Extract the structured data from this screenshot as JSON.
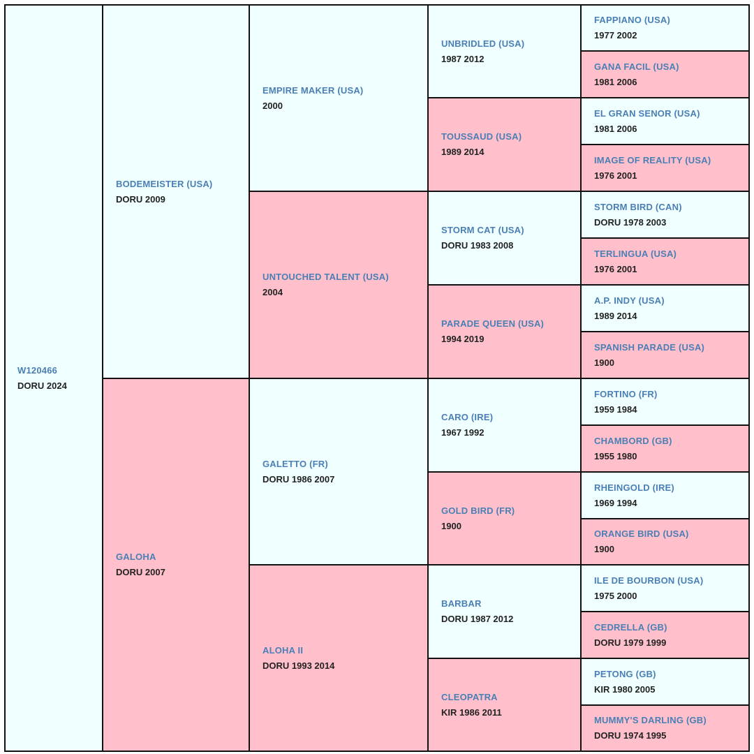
{
  "pedigree": {
    "subject": {
      "name": "W120466",
      "info": "DORU 2024",
      "sex": "male"
    },
    "sire": {
      "name": "BODEMEISTER (USA)",
      "info": "DORU 2009",
      "sex": "male"
    },
    "dam": {
      "name": "GALOHA",
      "info": "DORU 2007",
      "sex": "female"
    },
    "gen3": [
      {
        "name": "EMPIRE MAKER (USA)",
        "info": "2000",
        "sex": "male"
      },
      {
        "name": "UNTOUCHED TALENT (USA)",
        "info": "2004",
        "sex": "female"
      },
      {
        "name": "GALETTO (FR)",
        "info": "DORU 1986 2007",
        "sex": "male"
      },
      {
        "name": "ALOHA II",
        "info": "DORU 1993 2014",
        "sex": "female"
      }
    ],
    "gen4": [
      {
        "name": "UNBRIDLED (USA)",
        "info": "1987 2012",
        "sex": "male"
      },
      {
        "name": "TOUSSAUD (USA)",
        "info": "1989 2014",
        "sex": "female"
      },
      {
        "name": "STORM CAT (USA)",
        "info": "DORU 1983 2008",
        "sex": "male"
      },
      {
        "name": "PARADE QUEEN (USA)",
        "info": "1994 2019",
        "sex": "female"
      },
      {
        "name": "CARO (IRE)",
        "info": "1967 1992",
        "sex": "male"
      },
      {
        "name": "GOLD BIRD (FR)",
        "info": "1900",
        "sex": "female"
      },
      {
        "name": "BARBAR",
        "info": "DORU 1987 2012",
        "sex": "male"
      },
      {
        "name": "CLEOPATRA",
        "info": "KIR 1986 2011",
        "sex": "female"
      }
    ],
    "gen5": [
      {
        "name": "FAPPIANO (USA)",
        "info": "1977 2002",
        "sex": "male"
      },
      {
        "name": "GANA FACIL (USA)",
        "info": "1981 2006",
        "sex": "female"
      },
      {
        "name": "EL GRAN SENOR (USA)",
        "info": "1981 2006",
        "sex": "male"
      },
      {
        "name": "IMAGE OF REALITY (USA)",
        "info": "1976 2001",
        "sex": "female"
      },
      {
        "name": "STORM BIRD (CAN)",
        "info": "DORU 1978 2003",
        "sex": "male"
      },
      {
        "name": "TERLINGUA (USA)",
        "info": "1976 2001",
        "sex": "female"
      },
      {
        "name": "A.P. INDY (USA)",
        "info": "1989 2014",
        "sex": "male"
      },
      {
        "name": "SPANISH PARADE (USA)",
        "info": "1900",
        "sex": "female"
      },
      {
        "name": "FORTINO (FR)",
        "info": "1959 1984",
        "sex": "male"
      },
      {
        "name": "CHAMBORD (GB)",
        "info": "1955 1980",
        "sex": "female"
      },
      {
        "name": "RHEINGOLD (IRE)",
        "info": "1969 1994",
        "sex": "male"
      },
      {
        "name": "ORANGE BIRD (USA)",
        "info": "1900",
        "sex": "female"
      },
      {
        "name": "ILE DE BOURBON (USA)",
        "info": "1975 2000",
        "sex": "male"
      },
      {
        "name": "CEDRELLA (GB)",
        "info": "DORU 1979 1999",
        "sex": "female"
      },
      {
        "name": "PETONG (GB)",
        "info": "KIR 1980 2005",
        "sex": "male"
      },
      {
        "name": "MUMMY'S DARLING (GB)",
        "info": "DORU 1974 1995",
        "sex": "female"
      }
    ]
  },
  "colors": {
    "male": "#f0ffff",
    "female": "#ffc0cb",
    "link": "#4a7fb5",
    "text": "#222222",
    "border": "#111111"
  }
}
